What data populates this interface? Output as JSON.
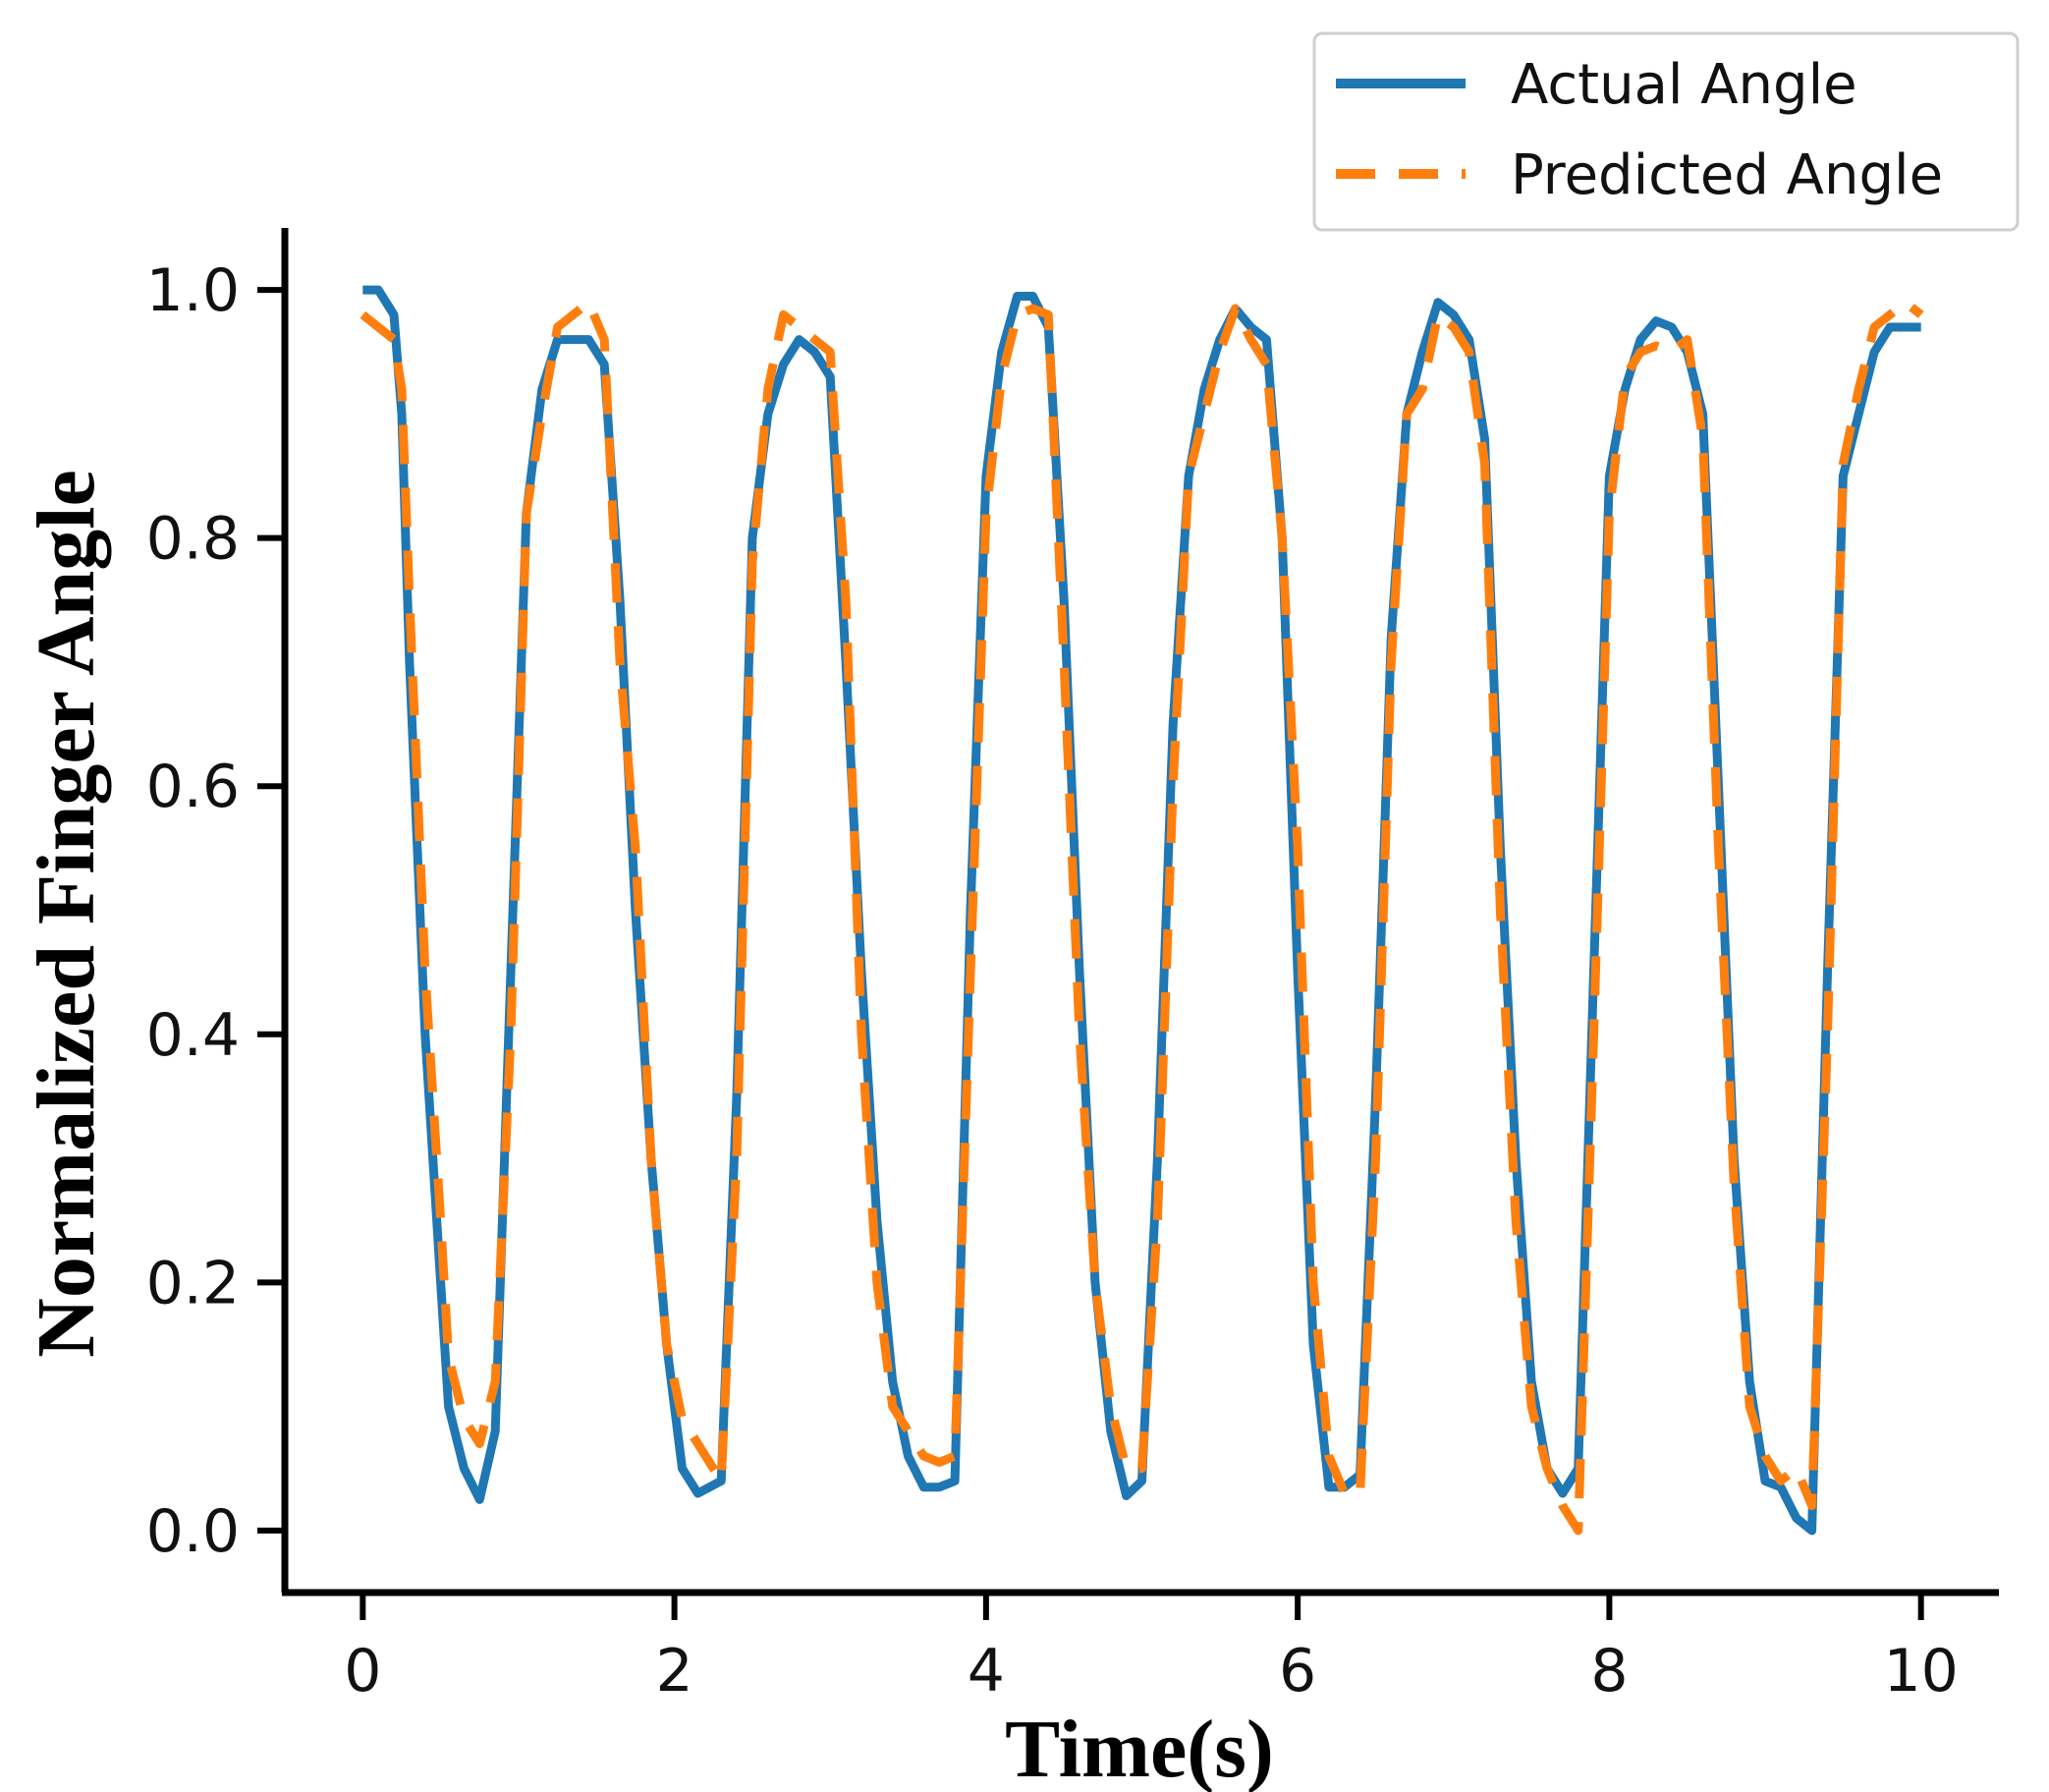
{
  "chart_data": {
    "type": "line",
    "title": "",
    "xlabel": "Time(s)",
    "ylabel": "Normalized Finger Angle",
    "xlim": [
      -0.5,
      10.5
    ],
    "ylim": [
      -0.05,
      1.05
    ],
    "xticks": [
      0,
      2,
      4,
      6,
      8,
      10
    ],
    "xtick_labels": [
      "0",
      "2",
      "4",
      "6",
      "8",
      "10"
    ],
    "yticks": [
      0.0,
      0.2,
      0.4,
      0.6,
      0.8,
      1.0
    ],
    "ytick_labels": [
      "0.0",
      "0.2",
      "0.4",
      "0.6",
      "0.8",
      "1.0"
    ],
    "grid": false,
    "legend_position": "top-right",
    "series": [
      {
        "name": "Actual Angle",
        "color": "#1f77b4",
        "style": "solid",
        "x": [
          0.0,
          0.1,
          0.2,
          0.25,
          0.3,
          0.4,
          0.5,
          0.55,
          0.65,
          0.75,
          0.85,
          0.95,
          1.05,
          1.15,
          1.25,
          1.35,
          1.45,
          1.55,
          1.65,
          1.75,
          1.85,
          1.95,
          2.05,
          2.15,
          2.3,
          2.4,
          2.5,
          2.6,
          2.7,
          2.8,
          2.9,
          3.0,
          3.1,
          3.2,
          3.3,
          3.4,
          3.5,
          3.6,
          3.7,
          3.8,
          3.9,
          4.0,
          4.1,
          4.2,
          4.3,
          4.4,
          4.5,
          4.6,
          4.7,
          4.8,
          4.9,
          5.0,
          5.1,
          5.2,
          5.3,
          5.4,
          5.5,
          5.6,
          5.7,
          5.8,
          5.9,
          6.0,
          6.1,
          6.2,
          6.3,
          6.4,
          6.5,
          6.6,
          6.7,
          6.8,
          6.9,
          7.0,
          7.1,
          7.2,
          7.3,
          7.4,
          7.5,
          7.6,
          7.7,
          7.8,
          7.9,
          8.0,
          8.1,
          8.2,
          8.3,
          8.4,
          8.5,
          8.6,
          8.7,
          8.8,
          8.9,
          9.0,
          9.1,
          9.2,
          9.3,
          9.4,
          9.5,
          9.6,
          9.7,
          9.8,
          9.9,
          10.0
        ],
        "y": [
          1.0,
          1.0,
          0.98,
          0.9,
          0.7,
          0.4,
          0.2,
          0.1,
          0.05,
          0.025,
          0.08,
          0.45,
          0.82,
          0.92,
          0.96,
          0.96,
          0.96,
          0.94,
          0.75,
          0.5,
          0.3,
          0.15,
          0.05,
          0.03,
          0.04,
          0.35,
          0.8,
          0.9,
          0.94,
          0.96,
          0.95,
          0.93,
          0.7,
          0.45,
          0.25,
          0.12,
          0.06,
          0.035,
          0.035,
          0.04,
          0.5,
          0.85,
          0.95,
          0.995,
          0.995,
          0.97,
          0.75,
          0.45,
          0.2,
          0.08,
          0.028,
          0.04,
          0.3,
          0.65,
          0.85,
          0.92,
          0.96,
          0.985,
          0.97,
          0.96,
          0.8,
          0.45,
          0.15,
          0.035,
          0.035,
          0.045,
          0.35,
          0.72,
          0.9,
          0.95,
          0.99,
          0.98,
          0.96,
          0.88,
          0.55,
          0.3,
          0.12,
          0.05,
          0.03,
          0.05,
          0.45,
          0.85,
          0.92,
          0.96,
          0.975,
          0.97,
          0.95,
          0.9,
          0.6,
          0.3,
          0.12,
          0.04,
          0.035,
          0.01,
          0.0,
          0.45,
          0.85,
          0.9,
          0.95,
          0.97,
          0.97,
          0.97
        ]
      },
      {
        "name": "Predicted Angle",
        "color": "#ff7f0e",
        "style": "dashed",
        "x": [
          0.0,
          0.1,
          0.2,
          0.25,
          0.3,
          0.4,
          0.5,
          0.55,
          0.65,
          0.75,
          0.85,
          0.95,
          1.05,
          1.15,
          1.25,
          1.35,
          1.45,
          1.55,
          1.65,
          1.75,
          1.85,
          1.95,
          2.05,
          2.15,
          2.3,
          2.4,
          2.5,
          2.6,
          2.7,
          2.8,
          2.9,
          3.0,
          3.1,
          3.2,
          3.3,
          3.4,
          3.5,
          3.6,
          3.7,
          3.8,
          3.9,
          4.0,
          4.1,
          4.2,
          4.3,
          4.4,
          4.5,
          4.6,
          4.7,
          4.8,
          4.9,
          5.0,
          5.1,
          5.2,
          5.3,
          5.4,
          5.5,
          5.6,
          5.7,
          5.8,
          5.9,
          6.0,
          6.1,
          6.2,
          6.3,
          6.4,
          6.5,
          6.6,
          6.7,
          6.8,
          6.9,
          7.0,
          7.1,
          7.2,
          7.3,
          7.4,
          7.5,
          7.6,
          7.7,
          7.8,
          7.9,
          8.0,
          8.1,
          8.2,
          8.3,
          8.4,
          8.5,
          8.6,
          8.7,
          8.8,
          8.9,
          9.0,
          9.1,
          9.2,
          9.3,
          9.4,
          9.5,
          9.6,
          9.7,
          9.8,
          9.9,
          10.0
        ],
        "y": [
          0.98,
          0.97,
          0.96,
          0.92,
          0.75,
          0.45,
          0.25,
          0.14,
          0.09,
          0.07,
          0.12,
          0.4,
          0.82,
          0.9,
          0.97,
          0.98,
          0.99,
          0.96,
          0.7,
          0.55,
          0.3,
          0.15,
          0.09,
          0.07,
          0.04,
          0.3,
          0.78,
          0.92,
          0.98,
          0.97,
          0.96,
          0.95,
          0.75,
          0.4,
          0.2,
          0.1,
          0.08,
          0.06,
          0.055,
          0.06,
          0.45,
          0.82,
          0.93,
          0.98,
          0.985,
          0.98,
          0.7,
          0.4,
          0.2,
          0.1,
          0.05,
          0.05,
          0.25,
          0.6,
          0.85,
          0.9,
          0.95,
          0.985,
          0.96,
          0.94,
          0.8,
          0.55,
          0.2,
          0.06,
          0.03,
          0.03,
          0.3,
          0.7,
          0.9,
          0.92,
          0.98,
          0.97,
          0.95,
          0.86,
          0.5,
          0.25,
          0.1,
          0.05,
          0.02,
          0.0,
          0.4,
          0.82,
          0.93,
          0.95,
          0.955,
          0.95,
          0.96,
          0.88,
          0.55,
          0.28,
          0.1,
          0.06,
          0.04,
          0.05,
          0.02,
          0.4,
          0.86,
          0.92,
          0.97,
          0.98,
          0.99,
          0.98
        ]
      }
    ]
  }
}
